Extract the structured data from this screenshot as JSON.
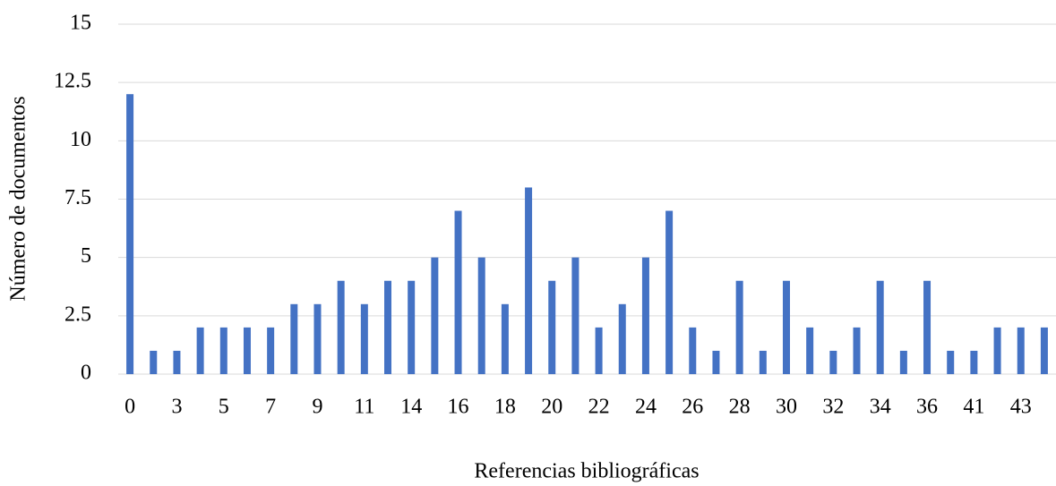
{
  "chart_data": {
    "type": "bar",
    "xlabel": "Referencias bibliográficas",
    "ylabel": "Número de documentos",
    "categories": [
      "0",
      null,
      "3",
      null,
      "5",
      null,
      "7",
      null,
      "9",
      null,
      "11",
      null,
      "14",
      null,
      "16",
      null,
      "18",
      null,
      "20",
      null,
      "22",
      null,
      "24",
      null,
      "26",
      null,
      "28",
      null,
      "30",
      null,
      "32",
      null,
      "34",
      null,
      "36",
      null,
      "41",
      null,
      "43",
      null
    ],
    "values": [
      12,
      1,
      1,
      2,
      2,
      2,
      2,
      3,
      3,
      4,
      3,
      4,
      4,
      5,
      7,
      5,
      3,
      8,
      4,
      5,
      2,
      3,
      5,
      7,
      2,
      1,
      4,
      1,
      4,
      2,
      1,
      2,
      4,
      1,
      4,
      1,
      1,
      2,
      2,
      2
    ],
    "color": "#4472c4",
    "ylim": [
      0,
      15
    ],
    "yticks": [
      0,
      2.5,
      5,
      7.5,
      10,
      12.5,
      15
    ],
    "grid": true
  }
}
